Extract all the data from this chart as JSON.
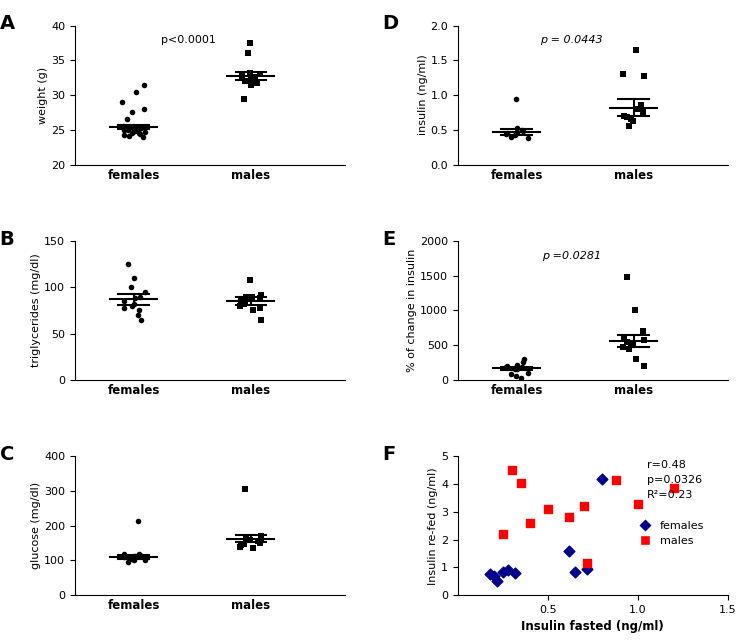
{
  "panel_A": {
    "label": "A",
    "ylabel": "weight (g)",
    "ylim": [
      20,
      40
    ],
    "yticks": [
      20,
      25,
      30,
      35,
      40
    ],
    "ptext": "p<0.0001",
    "pitalic": false,
    "females": [
      24.2,
      24.4,
      24.5,
      24.6,
      24.7,
      24.8,
      24.9,
      25.0,
      25.0,
      25.1,
      25.2,
      25.3,
      25.4,
      25.5,
      24.1,
      23.9,
      26.5,
      27.5,
      28.0,
      29.0,
      30.5,
      31.5
    ],
    "females_mean": 25.4,
    "females_sem": 0.35,
    "males": [
      32.0,
      32.5,
      33.0,
      32.8,
      32.2,
      31.8,
      32.6,
      33.2,
      29.5,
      31.5,
      36.0,
      37.5
    ],
    "males_mean": 32.7,
    "males_sem": 0.55
  },
  "panel_B": {
    "label": "B",
    "ylabel": "triglycerides (mg/dl)",
    "ylim": [
      0,
      150
    ],
    "yticks": [
      0,
      50,
      100,
      150
    ],
    "females": [
      85,
      90,
      80,
      75,
      95,
      88,
      82,
      78,
      125,
      110,
      70,
      65,
      100
    ],
    "females_mean": 87,
    "females_sem": 6,
    "males": [
      85,
      90,
      88,
      82,
      108,
      92,
      80,
      75,
      65,
      85,
      90,
      78
    ],
    "males_mean": 85,
    "males_sem": 4
  },
  "panel_C": {
    "label": "C",
    "ylabel": "glucose (mg/dl)",
    "ylim": [
      0,
      400
    ],
    "yticks": [
      0,
      100,
      200,
      300,
      400
    ],
    "females": [
      110,
      115,
      105,
      118,
      100,
      112,
      108,
      120,
      95,
      102,
      215
    ],
    "females_mean": 110,
    "females_sem": 7,
    "males": [
      155,
      160,
      145,
      165,
      150,
      148,
      158,
      162,
      140,
      135,
      170,
      305
    ],
    "males_mean": 162,
    "males_sem": 10
  },
  "panel_D": {
    "label": "D",
    "ylabel": "insulin (ng/ml)",
    "ylim": [
      0.0,
      2.0
    ],
    "yticks": [
      0.0,
      0.5,
      1.0,
      1.5,
      2.0
    ],
    "ptext": "p = 0.0443",
    "pitalic": true,
    "females": [
      0.45,
      0.48,
      0.42,
      0.5,
      0.38,
      0.46,
      0.52,
      0.44,
      0.4,
      0.95
    ],
    "females_mean": 0.47,
    "females_sem": 0.04,
    "males": [
      0.8,
      0.85,
      0.65,
      0.7,
      0.55,
      0.75,
      0.68,
      0.62,
      1.28,
      1.3,
      1.65
    ],
    "males_mean": 0.82,
    "males_sem": 0.12
  },
  "panel_E": {
    "label": "E",
    "ylabel": "% of change in insulin",
    "ylim": [
      0,
      2000
    ],
    "yticks": [
      0,
      500,
      1000,
      1500,
      2000
    ],
    "ptext": "p =0.0281",
    "pitalic": true,
    "females": [
      200,
      250,
      150,
      180,
      100,
      160,
      220,
      180,
      80,
      50,
      30,
      300
    ],
    "females_mean": 165,
    "females_sem": 22,
    "males": [
      500,
      600,
      450,
      700,
      550,
      520,
      580,
      480,
      300,
      200,
      1480,
      1000
    ],
    "males_mean": 560,
    "males_sem": 90
  },
  "panel_F": {
    "label": "F",
    "xlabel": "Insulin fasted (ng/ml)",
    "ylabel": "Insulin re-fed (ng/ml)",
    "xlim": [
      0,
      1.5
    ],
    "ylim": [
      0,
      5
    ],
    "xticks": [
      0.5,
      1.0,
      1.5
    ],
    "yticks": [
      0,
      1,
      2,
      3,
      4,
      5
    ],
    "annotation": "r=0.48\np=0.0326\nR²=0.23",
    "females_x": [
      0.18,
      0.22,
      0.2,
      0.25,
      0.28,
      0.32,
      0.62,
      0.65,
      0.72,
      0.8
    ],
    "females_y": [
      0.75,
      0.5,
      0.7,
      0.85,
      0.9,
      0.8,
      1.6,
      0.85,
      0.95,
      4.2
    ],
    "males_x": [
      0.25,
      0.3,
      0.35,
      0.4,
      0.5,
      0.62,
      0.7,
      0.72,
      0.88,
      1.0,
      1.2
    ],
    "males_y": [
      2.2,
      4.5,
      4.05,
      2.6,
      3.1,
      2.8,
      3.2,
      1.15,
      4.15,
      3.3,
      3.85
    ]
  }
}
